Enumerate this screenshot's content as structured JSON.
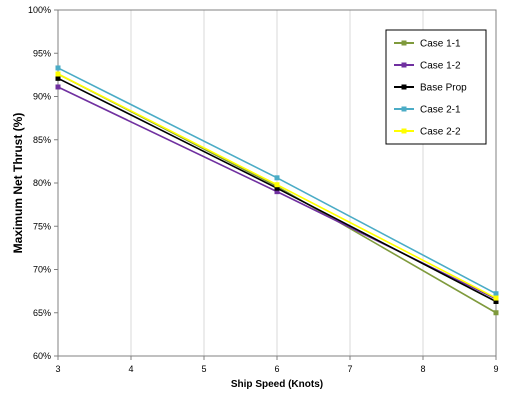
{
  "chart_data": {
    "type": "line",
    "xlabel": "Ship Speed (Knots)",
    "ylabel": "Maximum Net Thrust (%)",
    "xlim": [
      3,
      9
    ],
    "ylim": [
      60,
      100
    ],
    "x_ticks": [
      "3",
      "4",
      "5",
      "6",
      "7",
      "8",
      "9"
    ],
    "y_ticks": [
      "60%",
      "65%",
      "70%",
      "75%",
      "80%",
      "85%",
      "90%",
      "95%",
      "100%"
    ],
    "grid": "vertical",
    "legend_position": "top-right",
    "series": [
      {
        "name": "Case 1-1",
        "color": "#7f9a3c",
        "marker": "square",
        "points": [
          [
            3,
            92.6
          ],
          [
            6,
            79.6
          ],
          [
            9,
            65.0
          ]
        ]
      },
      {
        "name": "Case 1-2",
        "color": "#7030a0",
        "marker": "square",
        "points": [
          [
            3,
            91.1
          ],
          [
            6,
            79.0
          ],
          [
            9,
            66.6
          ]
        ]
      },
      {
        "name": "Base Prop",
        "color": "#000000",
        "marker": "square",
        "points": [
          [
            3,
            92.1
          ],
          [
            6,
            79.4
          ],
          [
            9,
            66.3
          ]
        ]
      },
      {
        "name": "Case 2-1",
        "color": "#4bacc6",
        "marker": "square",
        "points": [
          [
            3,
            93.3
          ],
          [
            6,
            80.6
          ],
          [
            9,
            67.2
          ]
        ]
      },
      {
        "name": "Case 2-2",
        "color": "#ffff00",
        "marker": "square",
        "points": [
          [
            3,
            92.6
          ],
          [
            6,
            79.8
          ],
          [
            9,
            66.7
          ]
        ]
      }
    ]
  }
}
